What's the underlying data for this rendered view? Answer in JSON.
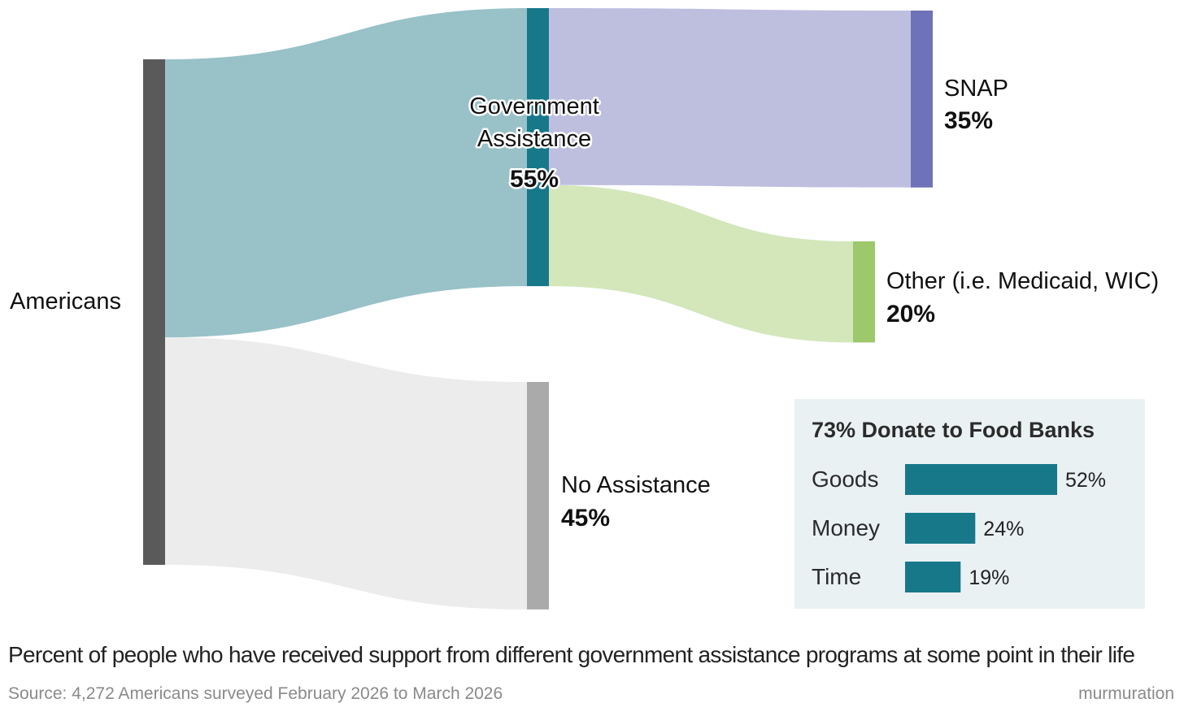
{
  "chart_data": {
    "type": "sankey",
    "nodes": [
      {
        "id": "americans",
        "label": "Americans",
        "value": 100,
        "color": "#5a5a5a"
      },
      {
        "id": "gov",
        "label_lines": [
          "Government",
          "Assistance"
        ],
        "value_label": "55%",
        "value": 55,
        "color": "#17788a"
      },
      {
        "id": "none",
        "label": "No Assistance",
        "value_label": "45%",
        "value": 45,
        "color": "#aaaaaa"
      },
      {
        "id": "snap",
        "label": "SNAP",
        "value_label": "35%",
        "value": 35,
        "color": "#6e72b8"
      },
      {
        "id": "other",
        "label": "Other (i.e. Medicaid, WIC)",
        "value_label": "20%",
        "value": 20,
        "color": "#9dc86b"
      }
    ],
    "links": [
      {
        "source": "americans",
        "target": "gov",
        "value": 55,
        "color": "#98c1c8"
      },
      {
        "source": "americans",
        "target": "none",
        "value": 45,
        "color": "#ececec"
      },
      {
        "source": "gov",
        "target": "snap",
        "value": 35,
        "color": "#bebfdf"
      },
      {
        "source": "gov",
        "target": "other",
        "value": 20,
        "color": "#d3e7bb"
      }
    ],
    "inset": {
      "type": "bar",
      "title": "73% Donate to Food Banks",
      "categories": [
        "Goods",
        "Money",
        "Time"
      ],
      "values": [
        52,
        24,
        19
      ],
      "value_labels": [
        "52%",
        "24%",
        "19%"
      ],
      "bar_color": "#17788a",
      "background": "#eaf1f3",
      "xlim": [
        0,
        52
      ]
    }
  },
  "caption": "Percent of people who have received support from different government assistance programs at some point in their life",
  "source": "Source: 4,272 Americans surveyed February 2026 to March 2026",
  "brand": "murmuration"
}
